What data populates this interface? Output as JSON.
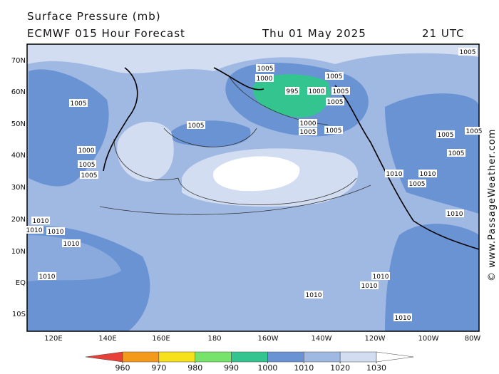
{
  "title": "Surface Pressure (mb)",
  "subtitle": "ECMWF 015 Hour Forecast",
  "date": "Thu 01 May 2025",
  "time": "21 UTC",
  "copyright": "© www.PassageWeather.com",
  "lat_labels": [
    "70N",
    "60N",
    "50N",
    "40N",
    "30N",
    "20N",
    "10N",
    "EQ",
    "10S"
  ],
  "lon_labels": [
    "120E",
    "140E",
    "160E",
    "180",
    "160W",
    "140W",
    "120W",
    "100W",
    "80W"
  ],
  "colorbar": {
    "ticks": [
      960,
      970,
      980,
      990,
      1000,
      1010,
      1020,
      1030
    ],
    "colors": [
      "#e8413a",
      "#f39a1c",
      "#f7e11c",
      "#76e36a",
      "#33c48f",
      "#6a93d4",
      "#a0b9e2",
      "#d2ddf2",
      "#ffffff"
    ]
  },
  "contour_labels": [
    "1005",
    "1005",
    "1000",
    "1005",
    "1005",
    "1000",
    "995",
    "1005",
    "1005",
    "1000",
    "1005",
    "1005",
    "1000",
    "1005",
    "1005",
    "1010",
    "1010",
    "1005",
    "1010",
    "1010",
    "1005",
    "1010",
    "1010",
    "1010",
    "1010",
    "1005",
    "1005",
    "1005",
    "1010",
    "1010",
    "1010",
    "1010"
  ]
}
